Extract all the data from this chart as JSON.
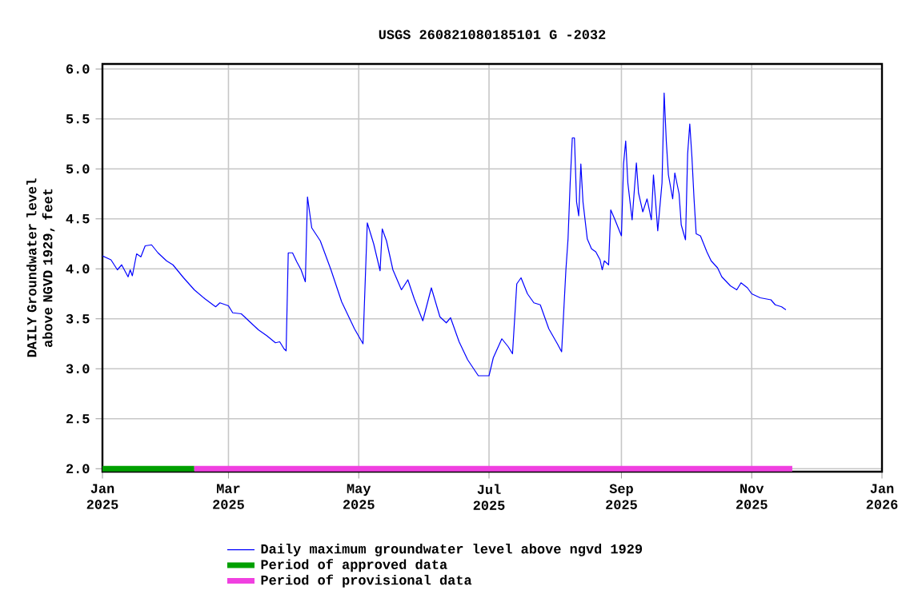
{
  "chart_data": {
    "type": "line",
    "title": "USGS 260821080185101 G  -2032",
    "ylabel": "DAILY Groundwater level above NGVD 1929, feet",
    "xlim": [
      "2025-01-01",
      "2026-01-01"
    ],
    "xticks": [
      {
        "value": "2025-01-01",
        "label": "Jan 2025"
      },
      {
        "value": "2025-03-01",
        "label": "Mar 2025"
      },
      {
        "value": "2025-05-01",
        "label": "May 2025"
      },
      {
        "value": "2025-07-01",
        "label": "Jul 2025"
      },
      {
        "value": "2025-09-01",
        "label": "Sep 2025"
      },
      {
        "value": "2025-11-01",
        "label": "Nov 2025"
      },
      {
        "value": "2026-01-01",
        "label": "Jan 2026"
      }
    ],
    "ylim": [
      1.97,
      6.05
    ],
    "yticks": [
      {
        "value": 2,
        "label": "2.0"
      },
      {
        "value": 2.5,
        "label": "2.5"
      },
      {
        "value": 3,
        "label": "3.0"
      },
      {
        "value": 3.5,
        "label": "3.5"
      },
      {
        "value": 4,
        "label": "4.0"
      },
      {
        "value": 4.5,
        "label": "4.5"
      },
      {
        "value": 5,
        "label": "5.0"
      },
      {
        "value": 5.5,
        "label": "5.5"
      },
      {
        "value": 6,
        "label": "6.0"
      }
    ],
    "grid": true,
    "legend": "bottom",
    "series": [
      {
        "name": "Daily maximum groundwater level above ngvd 1929",
        "color": "#0000ff",
        "x": [
          "2025-01-01",
          "2025-01-05",
          "2025-01-08",
          "2025-01-10",
          "2025-01-13",
          "2025-01-14",
          "2025-01-15",
          "2025-01-17",
          "2025-01-19",
          "2025-01-21",
          "2025-01-24",
          "2025-01-27",
          "2025-01-31",
          "2025-02-03",
          "2025-02-08",
          "2025-02-13",
          "2025-02-18",
          "2025-02-23",
          "2025-02-25",
          "2025-03-01",
          "2025-03-03",
          "2025-03-07",
          "2025-03-11",
          "2025-03-15",
          "2025-03-19",
          "2025-03-23",
          "2025-03-25",
          "2025-03-27",
          "2025-03-28",
          "2025-03-29",
          "2025-03-31",
          "2025-04-02",
          "2025-04-04",
          "2025-04-06",
          "2025-04-07",
          "2025-04-09",
          "2025-04-13",
          "2025-04-18",
          "2025-04-23",
          "2025-04-29",
          "2025-05-03",
          "2025-05-05",
          "2025-05-08",
          "2025-05-11",
          "2025-05-12",
          "2025-05-14",
          "2025-05-17",
          "2025-05-21",
          "2025-05-24",
          "2025-05-27",
          "2025-05-31",
          "2025-06-04",
          "2025-06-08",
          "2025-06-11",
          "2025-06-13",
          "2025-06-17",
          "2025-06-21",
          "2025-06-26",
          "2025-07-01",
          "2025-07-03",
          "2025-07-07",
          "2025-07-10",
          "2025-07-12",
          "2025-07-14",
          "2025-07-16",
          "2025-07-19",
          "2025-07-22",
          "2025-07-25",
          "2025-07-29",
          "2025-08-02",
          "2025-08-04",
          "2025-08-06",
          "2025-08-07",
          "2025-08-08",
          "2025-08-09",
          "2025-08-10",
          "2025-08-11",
          "2025-08-12",
          "2025-08-13",
          "2025-08-14",
          "2025-08-16",
          "2025-08-18",
          "2025-08-20",
          "2025-08-22",
          "2025-08-23",
          "2025-08-24",
          "2025-08-26",
          "2025-08-27",
          "2025-08-29",
          "2025-09-01",
          "2025-09-02",
          "2025-09-03",
          "2025-09-04",
          "2025-09-06",
          "2025-09-08",
          "2025-09-09",
          "2025-09-11",
          "2025-09-13",
          "2025-09-15",
          "2025-09-16",
          "2025-09-17",
          "2025-09-18",
          "2025-09-20",
          "2025-09-21",
          "2025-09-22",
          "2025-09-23",
          "2025-09-25",
          "2025-09-26",
          "2025-09-28",
          "2025-09-29",
          "2025-10-01",
          "2025-10-02",
          "2025-10-03",
          "2025-10-04",
          "2025-10-05",
          "2025-10-06",
          "2025-10-08",
          "2025-10-11",
          "2025-10-13",
          "2025-10-16",
          "2025-10-18",
          "2025-10-22",
          "2025-10-25",
          "2025-10-27",
          "2025-10-30",
          "2025-11-01",
          "2025-11-05",
          "2025-11-10",
          "2025-11-12",
          "2025-11-15",
          "2025-11-17"
        ],
        "values": [
          4.13,
          4.09,
          3.99,
          4.04,
          3.92,
          3.99,
          3.93,
          4.15,
          4.12,
          4.23,
          4.24,
          4.16,
          4.08,
          4.04,
          3.91,
          3.79,
          3.7,
          3.62,
          3.66,
          3.63,
          3.56,
          3.55,
          3.47,
          3.39,
          3.33,
          3.26,
          3.27,
          3.2,
          3.18,
          4.16,
          4.16,
          4.07,
          3.99,
          3.87,
          4.72,
          4.41,
          4.28,
          3.99,
          3.67,
          3.4,
          3.25,
          4.46,
          4.25,
          3.98,
          4.4,
          4.28,
          3.99,
          3.79,
          3.89,
          3.7,
          3.48,
          3.81,
          3.52,
          3.46,
          3.51,
          3.27,
          3.09,
          2.93,
          2.93,
          3.11,
          3.3,
          3.22,
          3.15,
          3.85,
          3.91,
          3.75,
          3.66,
          3.64,
          3.4,
          3.25,
          3.17,
          3.99,
          4.3,
          4.86,
          5.31,
          5.31,
          4.67,
          4.53,
          5.05,
          4.67,
          4.3,
          4.2,
          4.17,
          4.09,
          3.99,
          4.08,
          4.04,
          4.59,
          4.49,
          4.33,
          5.05,
          5.28,
          4.86,
          4.49,
          5.06,
          4.76,
          4.57,
          4.7,
          4.49,
          4.94,
          4.67,
          4.38,
          4.86,
          5.76,
          5.28,
          4.94,
          4.7,
          4.96,
          4.75,
          4.44,
          4.29,
          5.15,
          5.45,
          5.12,
          4.7,
          4.35,
          4.33,
          4.17,
          4.08,
          4.01,
          3.92,
          3.83,
          3.79,
          3.86,
          3.81,
          3.75,
          3.71,
          3.69,
          3.64,
          3.62,
          3.59
        ]
      },
      {
        "name": "Period of approved data",
        "color": "#00a000",
        "x": [
          "2025-01-01",
          "2025-02-13"
        ],
        "values": [
          2,
          2
        ]
      },
      {
        "name": "Period of provisional data",
        "color": "#f040e0",
        "x": [
          "2025-02-13",
          "2025-11-20"
        ],
        "values": [
          2,
          2
        ]
      }
    ]
  }
}
